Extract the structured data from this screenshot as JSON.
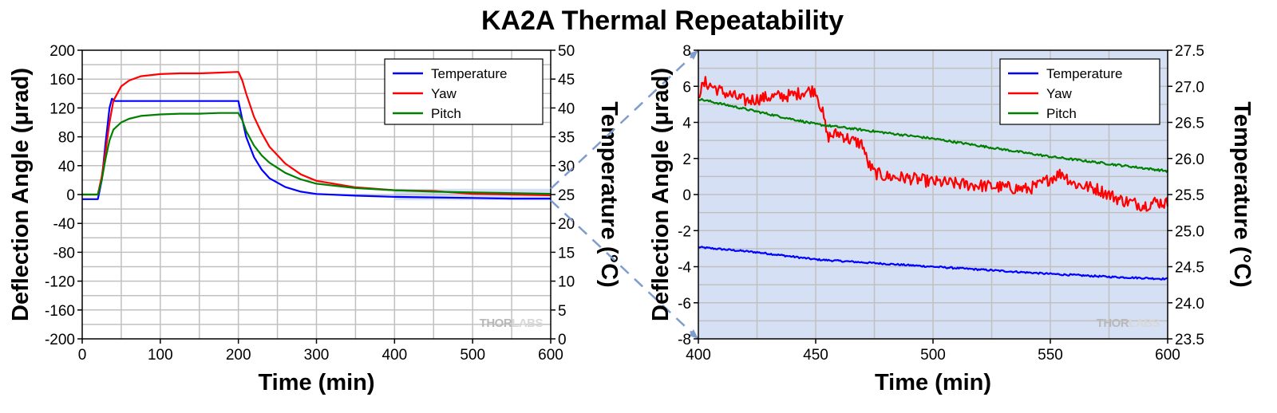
{
  "title": "KA2A Thermal Repeatability",
  "colors": {
    "temperature": "#0000ff",
    "yaw": "#ff0000",
    "pitch": "#008000",
    "highlight": "#d6e0f5",
    "connector": "#7f9ccf",
    "grid": "#c0c0c0"
  },
  "chart_data": [
    {
      "type": "line",
      "xlabel": "Time (min)",
      "ylabel": "Deflection Angle (μrad)",
      "y2label": "Temperature (°C)",
      "xlim": [
        0,
        600
      ],
      "ylim": [
        -200,
        200
      ],
      "y2lim": [
        0,
        50
      ],
      "xticks": [
        0,
        100,
        200,
        300,
        400,
        500,
        600
      ],
      "yticks": [
        -200,
        -160,
        -120,
        -80,
        -40,
        0,
        40,
        80,
        120,
        160,
        200
      ],
      "y2ticks": [
        0,
        5,
        10,
        15,
        20,
        25,
        30,
        35,
        40,
        45,
        50
      ],
      "grid": true,
      "legend_position": "top-right",
      "highlight_region": {
        "x": [
          400,
          600
        ],
        "y": [
          -8,
          8
        ]
      },
      "series": [
        {
          "name": "Temperature",
          "axis": "right",
          "x": [
            0,
            20,
            25,
            30,
            35,
            38,
            42,
            50,
            100,
            150,
            200,
            205,
            210,
            220,
            230,
            240,
            260,
            280,
            300,
            350,
            400,
            450,
            500,
            550,
            600
          ],
          "y": [
            24.2,
            24.2,
            27.5,
            34,
            40,
            41.6,
            41.2,
            41.2,
            41.2,
            41.2,
            41.2,
            38,
            35,
            31.5,
            29.3,
            27.8,
            26.3,
            25.5,
            25.1,
            24.8,
            24.6,
            24.5,
            24.4,
            24.3,
            24.3
          ]
        },
        {
          "name": "Yaw",
          "axis": "left",
          "x": [
            0,
            20,
            25,
            30,
            35,
            40,
            50,
            60,
            75,
            100,
            125,
            150,
            175,
            200,
            205,
            210,
            220,
            230,
            240,
            260,
            280,
            300,
            350,
            400,
            450,
            500,
            550,
            600
          ],
          "y": [
            0,
            0,
            25,
            60,
            100,
            130,
            150,
            158,
            164,
            167,
            168,
            168,
            169,
            170,
            158,
            140,
            108,
            85,
            66,
            43,
            28,
            19,
            10,
            6,
            5,
            1,
            0,
            -1
          ]
        },
        {
          "name": "Pitch",
          "axis": "left",
          "x": [
            0,
            20,
            25,
            30,
            35,
            40,
            50,
            60,
            75,
            100,
            125,
            150,
            175,
            200,
            205,
            210,
            220,
            230,
            240,
            260,
            280,
            300,
            350,
            400,
            450,
            500,
            550,
            600
          ],
          "y": [
            0,
            0,
            20,
            50,
            75,
            90,
            100,
            105,
            109,
            111,
            112,
            112,
            113,
            113,
            103,
            88,
            68,
            54,
            44,
            30,
            21,
            15,
            9,
            6,
            4,
            3,
            2,
            1
          ]
        }
      ],
      "legend": [
        "Temperature",
        "Yaw",
        "Pitch"
      ]
    },
    {
      "type": "line",
      "xlabel": "Time (min)",
      "ylabel": "Deflection Angle (μrad)",
      "y2label": "Temperature (°C)",
      "xlim": [
        400,
        600
      ],
      "ylim": [
        -8,
        8
      ],
      "y2lim": [
        23.5,
        27.5
      ],
      "xticks": [
        400,
        450,
        500,
        550,
        600
      ],
      "yticks": [
        -8,
        -6,
        -4,
        -2,
        0,
        2,
        4,
        6,
        8
      ],
      "y2ticks": [
        23.5,
        24.0,
        24.5,
        25.0,
        25.5,
        26.0,
        26.5,
        27.0,
        27.5
      ],
      "grid": true,
      "background": "#d6e0f5",
      "legend_position": "top-right",
      "series": [
        {
          "name": "Temperature",
          "axis": "right",
          "x": [
            400,
            425,
            450,
            475,
            500,
            525,
            550,
            575,
            600
          ],
          "y": [
            24.77,
            24.7,
            24.6,
            24.55,
            24.5,
            24.45,
            24.4,
            24.36,
            24.33
          ]
        },
        {
          "name": "Yaw",
          "axis": "left",
          "x": [
            400,
            403,
            410,
            420,
            430,
            440,
            445,
            450,
            453,
            455,
            460,
            465,
            470,
            472,
            475,
            480,
            490,
            500,
            510,
            520,
            530,
            540,
            545,
            550,
            555,
            560,
            570,
            580,
            590,
            595,
            600
          ],
          "y": [
            5.6,
            6.2,
            5.7,
            5.2,
            5.4,
            5.5,
            5.7,
            5.8,
            4.5,
            3.2,
            3.4,
            3.0,
            2.8,
            1.8,
            1.2,
            1.0,
            0.9,
            0.7,
            0.6,
            0.5,
            0.4,
            0.3,
            0.5,
            0.9,
            1.2,
            0.6,
            0.3,
            -0.3,
            -0.6,
            -0.4,
            -0.5
          ]
        },
        {
          "name": "Pitch",
          "axis": "left",
          "x": [
            400,
            425,
            450,
            475,
            500,
            525,
            550,
            575,
            600
          ],
          "y": [
            5.3,
            4.6,
            3.9,
            3.5,
            3.1,
            2.6,
            2.1,
            1.7,
            1.3
          ]
        }
      ],
      "legend": [
        "Temperature",
        "Yaw",
        "Pitch"
      ]
    }
  ],
  "watermark": {
    "dark": "THOR",
    "light": "LABS"
  }
}
